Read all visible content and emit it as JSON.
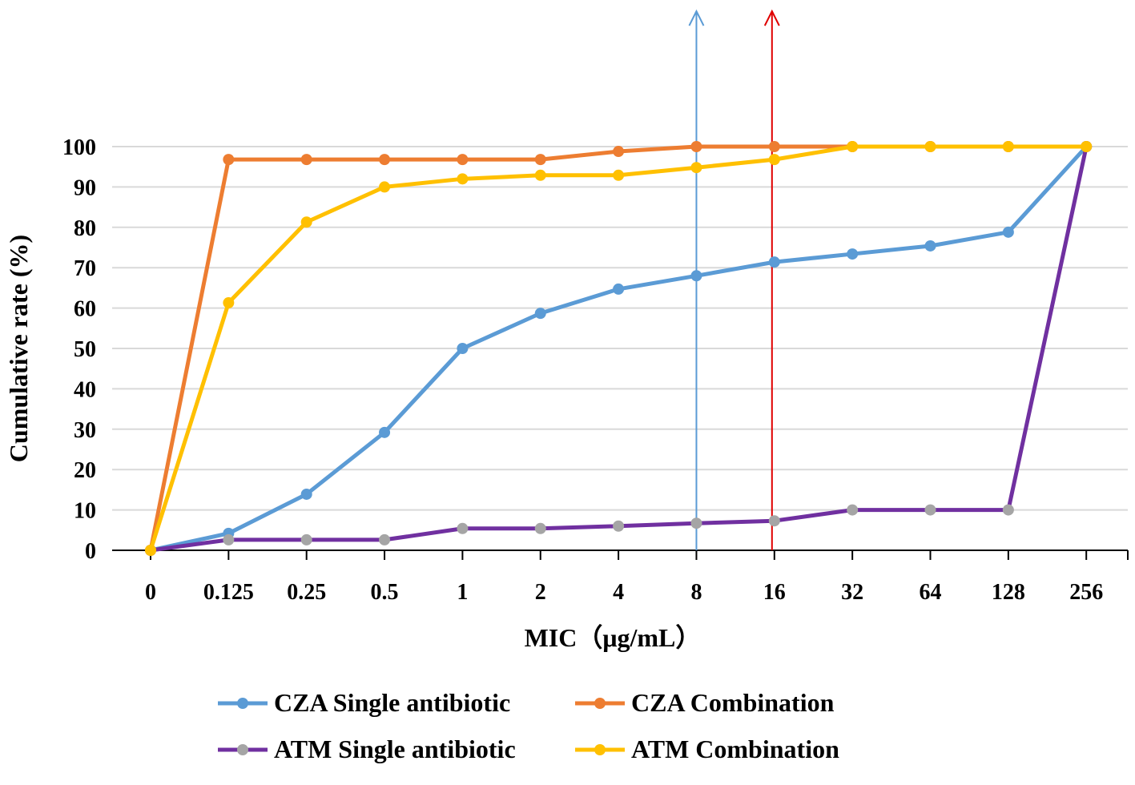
{
  "chart_data": {
    "type": "line",
    "title": "",
    "xlabel": "MIC（μg/mL）",
    "ylabel": "Cumulative rate (%)",
    "ylim": [
      0,
      100
    ],
    "yticks": [
      "0",
      "10",
      "20",
      "30",
      "40",
      "50",
      "60",
      "70",
      "80",
      "90",
      "100"
    ],
    "categories": [
      "0",
      "0.125",
      "0.25",
      "0.5",
      "1",
      "2",
      "4",
      "8",
      "16",
      "32",
      "64",
      "128",
      "256"
    ],
    "grid": true,
    "legend_position": "bottom",
    "series": [
      {
        "name": "CZA Single antibiotic",
        "color": "#5b9bd5",
        "marker": "#5b9bd5",
        "values": [
          0,
          4.2,
          13.9,
          29.2,
          50,
          58.7,
          64.7,
          68,
          71.4,
          73.4,
          75.4,
          78.8,
          100
        ]
      },
      {
        "name": "CZA Combination",
        "color": "#ed7d31",
        "marker": "#ed7d31",
        "values": [
          0,
          96.8,
          96.8,
          96.8,
          96.8,
          96.8,
          98.8,
          100,
          100,
          100,
          100,
          100,
          100
        ]
      },
      {
        "name": "ATM Single antibiotic",
        "color": "#7030a0",
        "marker": "#a5a5a5",
        "values": [
          0,
          2.6,
          2.6,
          2.6,
          5.4,
          5.4,
          6,
          6.7,
          7.3,
          10,
          10,
          10,
          100
        ]
      },
      {
        "name": "ATM Combination",
        "color": "#ffc000",
        "marker": "#ffc000",
        "values": [
          0,
          61.3,
          81.3,
          90,
          92,
          92.9,
          92.9,
          94.8,
          96.8,
          100,
          100,
          100,
          100
        ]
      }
    ],
    "annotations": [
      {
        "type": "vertical-arrow",
        "x": "8",
        "color": "#5b9bd5"
      },
      {
        "type": "vertical-arrow",
        "x": "16",
        "color": "#e00000"
      }
    ]
  }
}
